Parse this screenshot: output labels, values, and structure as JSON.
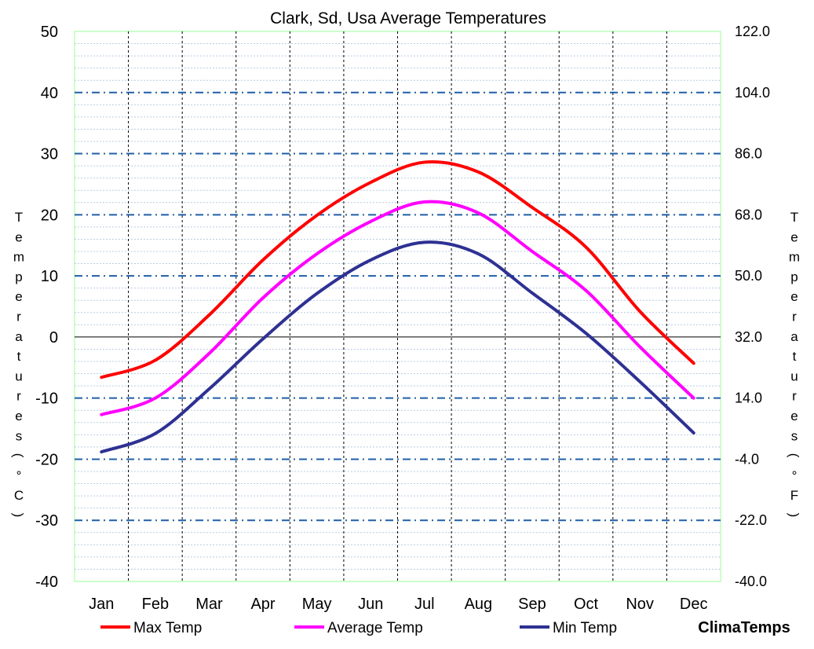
{
  "chart_data": {
    "type": "line",
    "title": "Clark, Sd, Usa Average Temperatures",
    "ylabel_left": "Temperatures (°C)",
    "ylabel_right": "Temperatures (°F)",
    "categories": [
      "Jan",
      "Feb",
      "Mar",
      "Apr",
      "May",
      "Jun",
      "Jul",
      "Aug",
      "Sep",
      "Oct",
      "Nov",
      "Dec"
    ],
    "ylim_c": [
      -40,
      50
    ],
    "yticks_c": [
      "50",
      "40",
      "30",
      "20",
      "10",
      "0",
      "-10",
      "-20",
      "-30",
      "-40"
    ],
    "yticks_f": [
      "122.0",
      "104.0",
      "86.0",
      "68.0",
      "50.0",
      "32.0",
      "14.0",
      "-4.0",
      "-22.0",
      "-40.0"
    ],
    "grid": true,
    "legend_position": "bottom",
    "series": [
      {
        "name": "Max Temp",
        "color": "#ff0000",
        "values": [
          -6.6,
          -3.8,
          3.6,
          12.6,
          19.9,
          25.3,
          28.6,
          27.0,
          21.2,
          14.7,
          4.2,
          -4.3
        ]
      },
      {
        "name": "Average Temp",
        "color": "#ff00ff",
        "values": [
          -12.7,
          -10.0,
          -2.7,
          6.4,
          13.6,
          18.9,
          22.1,
          20.3,
          14.0,
          7.6,
          -1.6,
          -10.0
        ]
      },
      {
        "name": "Min Temp",
        "color": "#2e3192",
        "values": [
          -18.8,
          -15.8,
          -8.5,
          -0.3,
          7.1,
          12.6,
          15.5,
          13.6,
          7.2,
          0.6,
          -7.3,
          -15.7
        ]
      }
    ]
  },
  "brand": {
    "text": "ClimaTemps",
    "color": "#7030a0"
  },
  "colors": {
    "major_grid": "#1f5fa8",
    "minor_grid": "#b8cce4",
    "frame": "#ccffcc"
  }
}
